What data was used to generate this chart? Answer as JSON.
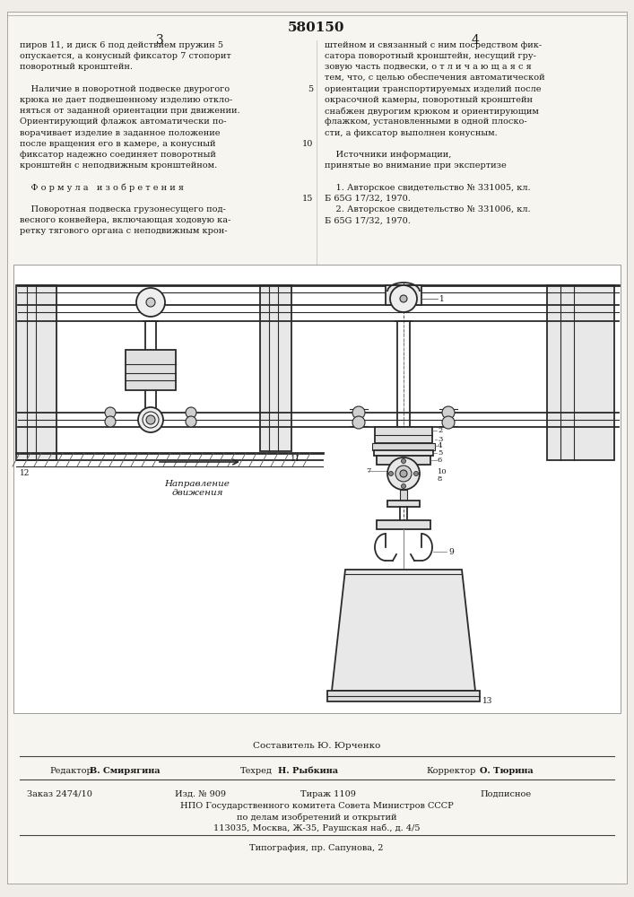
{
  "patent_number": "580150",
  "col_left": "3",
  "col_right": "4",
  "text_col3": [
    "пиров 11, и диск 6 под действием пружин 5",
    "опускается, а конусный фиксатор 7 стопорит",
    "поворотный кронштейн.",
    "",
    "    Наличие в поворотной подвеске двурогого",
    "крюка не дает подвешенному изделию откло-",
    "няться от заданной ориентации при движении.",
    "Ориентирующий флажок автоматически по-",
    "ворачивает изделие в заданное положение",
    "после вращения его в камере, а конусный",
    "фиксатор надежно соединяет поворотный",
    "кронштейн с неподвижным кронштейном.",
    "",
    "    Ф о р м у л а   и з о б р е т е н и я",
    "",
    "    Поворотная подвеска грузонесущего под-",
    "весного конвейера, включающая ходовую ка-",
    "ретку тягового органа с неподвижным крон-"
  ],
  "text_col4": [
    "штейном и связанный с ним посредством фик-",
    "сатора поворотный кронштейн, несущий гру-",
    "зовую часть подвески, о т л и ч а ю щ а я с я",
    "тем, что, с целью обеспечения автоматической",
    "ориентации транспортируемых изделий после",
    "окрасочной камеры, поворотный кронштейн",
    "снабжен двурогим крюком и ориентирующим",
    "флажком, установленными в одной плоско-",
    "сти, а фиксатор выполнен конусным.",
    "",
    "    Источники информации,",
    "принятые во внимание при экспертизе",
    "",
    "    1. Авторское свидетельство № 331005, кл.",
    "Б 65G 17/32, 1970.",
    "    2. Авторское свидетельство № 331006, кл.",
    "Б 65G 17/32, 1970."
  ],
  "lineno_5": "5",
  "lineno_10": "10",
  "lineno_15": "15",
  "footer_compiler": "Составитель Ю. Юрченко",
  "footer_editor_label": "Редактор",
  "footer_editor": "В. Смирягина",
  "footer_techred_label": "Техред",
  "footer_techred": "Н. Рыбкина",
  "footer_corrector_label": "Корректор",
  "footer_corrector": "О. Тюрина",
  "footer_subscribed": "Подписное",
  "footer_order": "Заказ 2474/10",
  "footer_pub": "Изд. № 909",
  "footer_circ": "Тираж 1109",
  "footer_org1": "НПО Государственного комитета Совета Министров СССР",
  "footer_org2": "по делам изобретений и открытий",
  "footer_org3": "113035, Москва, Ж-35, Раушская наб., д. 4/5",
  "footer_print": "Типография, пр. Сапунова, 2",
  "bg_color": "#f0ede8",
  "paper_color": "#f7f5f0",
  "text_color": "#1a1a1a",
  "draw_color": "#2a2a2a"
}
